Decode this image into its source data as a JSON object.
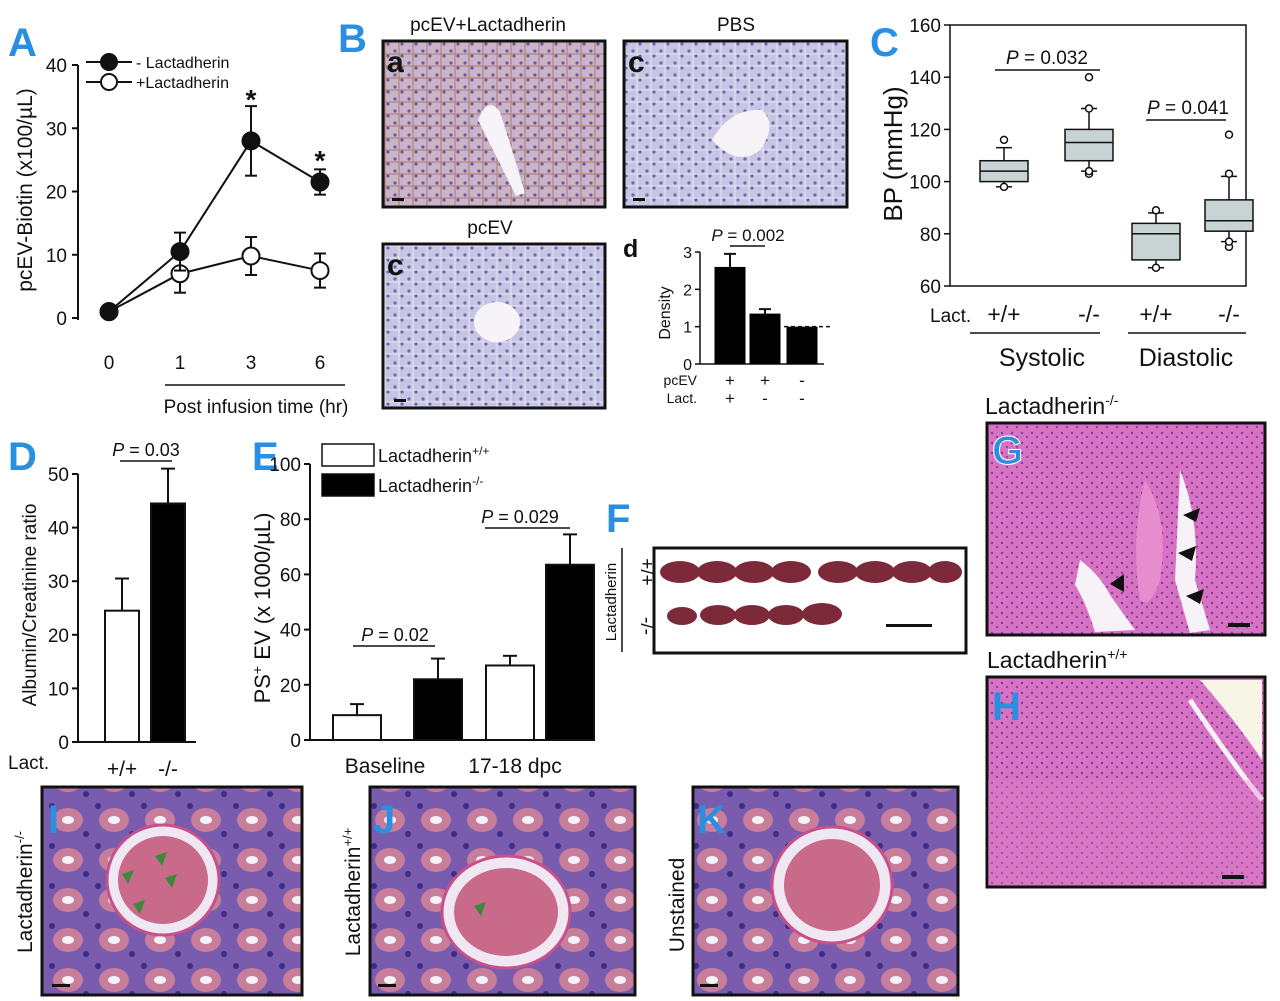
{
  "panels": {
    "A": "A",
    "B": "B",
    "C": "C",
    "D": "D",
    "E": "E",
    "F": "F",
    "G": "G",
    "H": "H",
    "I": "I",
    "J": "J",
    "K": "K"
  },
  "micrographs": {
    "b_a_title": "pcEV+Lactadherin",
    "b_a_letter": "a",
    "b_pbs_title": "PBS",
    "b_pbs_letter": "c",
    "b_pcev_title": "pcEV",
    "b_pcev_letter": "c",
    "g_title": "Lactadherin",
    "g_title_sup": "-/-",
    "h_title": "Lactadherin",
    "h_title_sup": "+/+",
    "i_label": "Lactadherin",
    "i_label_sup": "-/-",
    "j_label": "Lactadherin",
    "j_label_sup": "+/+",
    "k_label": "Unstained",
    "f_row_label": "Lactadherin",
    "f_row_top": "+/+",
    "f_row_bottom": "-/-"
  },
  "colors": {
    "panel_letter": "#2a8fe0",
    "ihc_liver": "#b9b8dc",
    "he_stain": "#d65fb8",
    "kidney_stain": "#8a5ab0",
    "box_fill": "#c8d3d3",
    "bar_black": "#000000",
    "bar_white": "#ffffff"
  },
  "chart_data": [
    {
      "id": "A",
      "type": "line",
      "ylabel": "pcEV-Biotin (x100/µL)",
      "xlabel": "Post infusion time (hr)",
      "x": [
        "0",
        "1",
        "3",
        "6"
      ],
      "ylim": [
        0,
        40
      ],
      "yticks": [
        "0",
        "10",
        "20",
        "30",
        "40"
      ],
      "series": [
        {
          "name": "- Lactadherin",
          "values": [
            1,
            10.5,
            28,
            21.5
          ],
          "errors": [
            0,
            3,
            5.5,
            2
          ],
          "marker": "filled"
        },
        {
          "name": "+Lactadherin",
          "values": [
            1,
            7,
            9.8,
            7.5
          ],
          "errors": [
            0,
            3,
            3,
            2.7
          ],
          "marker": "open"
        }
      ],
      "annotations": [
        "*",
        "*"
      ],
      "legend": "top-left"
    },
    {
      "id": "B-d",
      "type": "bar",
      "ylabel": "Density",
      "ylim": [
        0,
        3
      ],
      "yticks": [
        "0",
        "1",
        "2",
        "3"
      ],
      "values": [
        2.6,
        1.35,
        1.0
      ],
      "errors": [
        0.35,
        0.12,
        0
      ],
      "row_labels": [
        "pcEV",
        "Lact."
      ],
      "row_values": [
        [
          "+",
          "+",
          "-"
        ],
        [
          "+",
          "-",
          "-"
        ]
      ],
      "reference_line": 1,
      "annotation": "P = 0.002"
    },
    {
      "id": "C",
      "type": "box",
      "ylabel": "BP (mmHg)",
      "ylim": [
        60,
        160
      ],
      "yticks": [
        "60",
        "80",
        "100",
        "120",
        "140",
        "160"
      ],
      "row_label": "Lact.",
      "categories": [
        "+/+",
        "-/-",
        "+/+",
        "-/-"
      ],
      "groups": [
        "Systolic",
        "Diastolic"
      ],
      "boxes": [
        {
          "whisker_low": 98,
          "q1": 100,
          "median": 104,
          "q3": 108,
          "whisker_high": 113,
          "outliers": [
            98,
            116
          ]
        },
        {
          "whisker_low": 104,
          "q1": 108,
          "median": 115,
          "q3": 120,
          "whisker_high": 128,
          "outliers": [
            103,
            104,
            128,
            140
          ]
        },
        {
          "whisker_low": 67,
          "q1": 70,
          "median": 80,
          "q3": 84,
          "whisker_high": 88,
          "outliers": [
            67,
            89
          ]
        },
        {
          "whisker_low": 77,
          "q1": 81,
          "median": 85,
          "q3": 93,
          "whisker_high": 102,
          "outliers": [
            75,
            77,
            103,
            118
          ]
        }
      ],
      "annotations": [
        "P = 0.032",
        "P = 0.041"
      ]
    },
    {
      "id": "D",
      "type": "bar",
      "ylabel": "Albumin/Creatinine ratio",
      "ylim": [
        0,
        50
      ],
      "yticks": [
        "0",
        "10",
        "20",
        "30",
        "40",
        "50"
      ],
      "row_label": "Lact.",
      "categories": [
        "+/+",
        "-/-"
      ],
      "values": [
        24.5,
        44.5
      ],
      "errors": [
        6,
        6.5
      ],
      "annotation": "P = 0.03"
    },
    {
      "id": "E",
      "type": "bar",
      "ylabel": "PS",
      "ylabel_sup": "+",
      "ylabel_rest": " EV (x 1000/µL)",
      "ylim": [
        0,
        100
      ],
      "yticks": [
        "0",
        "20",
        "40",
        "60",
        "80",
        "100"
      ],
      "categories": [
        "Baseline",
        "17-18 dpc"
      ],
      "series": [
        {
          "name": "Lactadherin",
          "name_sup": "+/+",
          "values": [
            9,
            27
          ],
          "errors": [
            4,
            3.5
          ]
        },
        {
          "name": "Lactadherin",
          "name_sup": "-/-",
          "values": [
            22,
            63.5
          ],
          "errors": [
            7.5,
            11
          ]
        }
      ],
      "annotations": [
        "P = 0.02",
        "P = 0.029"
      ],
      "legend": "top-left"
    }
  ]
}
